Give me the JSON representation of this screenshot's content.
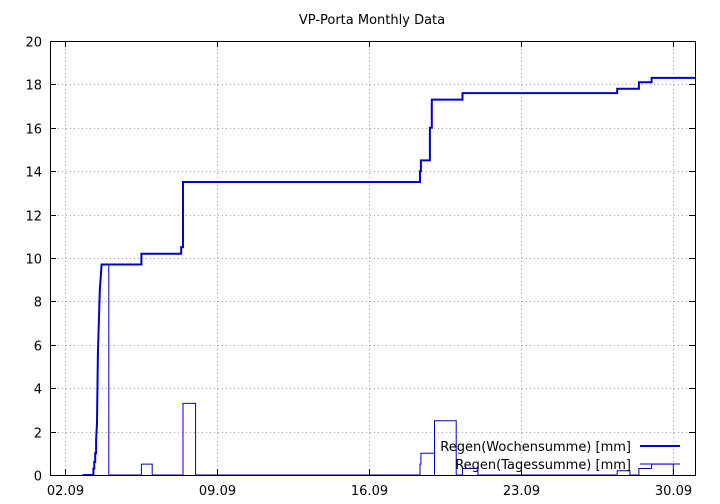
{
  "chart_data": {
    "type": "line",
    "title": "VP-Porta Monthly Data",
    "xlabel": "",
    "ylabel": "",
    "x_range": [
      "2011-09-01 07:00",
      "2011-09-30 24:00"
    ],
    "ylim": [
      0,
      20
    ],
    "y_ticks": [
      0,
      2,
      4,
      6,
      8,
      10,
      12,
      14,
      16,
      18,
      20
    ],
    "x_ticks": [
      {
        "label": "02.09",
        "at": "2011-09-02"
      },
      {
        "label": "09.09",
        "at": "2011-09-09"
      },
      {
        "label": "16.09",
        "at": "2011-09-16"
      },
      {
        "label": "23.09",
        "at": "2011-09-23"
      },
      {
        "label": "30.09",
        "at": "2011-09-30"
      }
    ],
    "grid": true,
    "legend_position": "bottom-right",
    "series": [
      {
        "name": "Regen(Wochensumme) [mm]",
        "color": "#0000c8",
        "line_width": 2,
        "points": [
          [
            "2011-09-02 19:00",
            0.0
          ],
          [
            "2011-09-03 07:00",
            0.0
          ],
          [
            "2011-09-03 07:00",
            0.3
          ],
          [
            "2011-09-03 08:00",
            0.3
          ],
          [
            "2011-09-03 08:00",
            0.6
          ],
          [
            "2011-09-03 09:00",
            0.6
          ],
          [
            "2011-09-03 09:00",
            1.0
          ],
          [
            "2011-09-03 10:00",
            1.0
          ],
          [
            "2011-09-03 10:00",
            1.6
          ],
          [
            "2011-09-03 11:00",
            2.4
          ],
          [
            "2011-09-03 12:00",
            5.6
          ],
          [
            "2011-09-03 14:00",
            8.5
          ],
          [
            "2011-09-03 16:00",
            9.7
          ],
          [
            "2011-09-05 12:00",
            9.7
          ],
          [
            "2011-09-05 12:00",
            10.2
          ],
          [
            "2011-09-07 08:00",
            10.2
          ],
          [
            "2011-09-07 08:00",
            10.5
          ],
          [
            "2011-09-07 10:00",
            10.5
          ],
          [
            "2011-09-07 10:00",
            13.5
          ],
          [
            "2011-09-18 08:00",
            13.5
          ],
          [
            "2011-09-18 08:00",
            14.0
          ],
          [
            "2011-09-18 09:00",
            14.0
          ],
          [
            "2011-09-18 09:00",
            14.5
          ],
          [
            "2011-09-18 19:00",
            14.5
          ],
          [
            "2011-09-18 19:00",
            16.0
          ],
          [
            "2011-09-18 21:00",
            16.0
          ],
          [
            "2011-09-18 21:00",
            17.3
          ],
          [
            "2011-09-20 07:00",
            17.3
          ],
          [
            "2011-09-20 07:00",
            17.6
          ],
          [
            "2011-09-27 10:00",
            17.6
          ],
          [
            "2011-09-27 10:00",
            17.8
          ],
          [
            "2011-09-28 10:00",
            17.8
          ],
          [
            "2011-09-28 10:00",
            18.1
          ],
          [
            "2011-09-29 00:00",
            18.1
          ],
          [
            "2011-09-29 00:00",
            18.3
          ],
          [
            "2011-09-30 24:00",
            18.3
          ]
        ]
      },
      {
        "name": "Regen(Tagessumme) [mm]",
        "color": "#0000c8",
        "line_width": 1,
        "points": [
          [
            "2011-09-03 07:00",
            0.0
          ],
          [
            "2011-09-03 07:00",
            0.3
          ],
          [
            "2011-09-03 08:00",
            0.3
          ],
          [
            "2011-09-03 08:00",
            0.6
          ],
          [
            "2011-09-03 09:00",
            0.6
          ],
          [
            "2011-09-03 09:00",
            1.0
          ],
          [
            "2011-09-03 10:00",
            1.0
          ],
          [
            "2011-09-03 10:00",
            1.6
          ],
          [
            "2011-09-03 11:00",
            2.4
          ],
          [
            "2011-09-03 12:00",
            5.6
          ],
          [
            "2011-09-03 14:00",
            8.5
          ],
          [
            "2011-09-03 16:00",
            9.7
          ],
          [
            "2011-09-04 00:00",
            9.7
          ],
          [
            "2011-09-04 00:00",
            0.0
          ],
          [
            "2011-09-05 12:00",
            0.0
          ],
          [
            "2011-09-05 12:00",
            0.5
          ],
          [
            "2011-09-06 00:00",
            0.5
          ],
          [
            "2011-09-06 00:00",
            0.0
          ],
          [
            "2011-09-07 10:00",
            0.0
          ],
          [
            "2011-09-07 10:00",
            3.3
          ],
          [
            "2011-09-08 00:00",
            3.3
          ],
          [
            "2011-09-08 00:00",
            0.0
          ],
          [
            "2011-09-18 08:00",
            0.0
          ],
          [
            "2011-09-18 08:00",
            0.5
          ],
          [
            "2011-09-18 09:00",
            0.5
          ],
          [
            "2011-09-18 09:00",
            1.0
          ],
          [
            "2011-09-19 00:00",
            1.0
          ],
          [
            "2011-09-19 00:00",
            0.0
          ],
          [
            "2011-09-19 00:00",
            2.5
          ],
          [
            "2011-09-20 00:00",
            2.5
          ],
          [
            "2011-09-20 00:00",
            0.0
          ],
          [
            "2011-09-20 07:00",
            0.0
          ],
          [
            "2011-09-20 07:00",
            0.3
          ],
          [
            "2011-09-21 00:00",
            0.3
          ],
          [
            "2011-09-21 00:00",
            0.0
          ],
          [
            "2011-09-27 10:00",
            0.0
          ],
          [
            "2011-09-27 10:00",
            0.2
          ],
          [
            "2011-09-28 00:00",
            0.2
          ],
          [
            "2011-09-28 00:00",
            0.0
          ],
          [
            "2011-09-28 10:00",
            0.0
          ],
          [
            "2011-09-28 10:00",
            0.3
          ],
          [
            "2011-09-29 00:00",
            0.3
          ],
          [
            "2011-09-29 00:00",
            0.5
          ],
          [
            "2011-09-30 00:00",
            0.5
          ],
          [
            "2011-09-30 00:00",
            0.0
          ]
        ]
      }
    ]
  }
}
